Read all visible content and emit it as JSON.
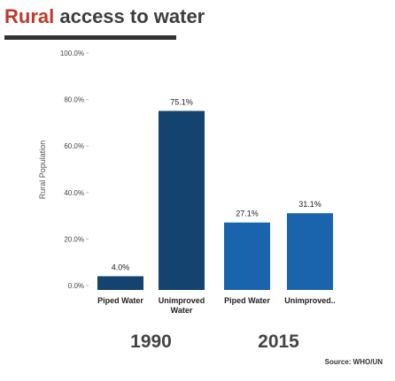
{
  "title": {
    "accent": "Rural",
    "rest": " access to water"
  },
  "source": "Source: WHO/UN",
  "colors": {
    "title_accent": "#c0392b",
    "bar_1990": "#13436e",
    "bar_2015": "#1a63ad"
  },
  "chart_data": {
    "type": "bar",
    "ylabel": "Rural Population",
    "ylim": [
      0,
      100
    ],
    "yticks": [
      "0.0%",
      "20.0%",
      "40.0%",
      "60.0%",
      "80.0%",
      "100.0%"
    ],
    "ytick_values": [
      0,
      20,
      40,
      60,
      80,
      100
    ],
    "groups": [
      {
        "year": "1990",
        "bars": [
          {
            "category": [
              "Piped Water"
            ],
            "value": 4.0,
            "label": "4.0%"
          },
          {
            "category": [
              "Unimproved",
              "Water"
            ],
            "value": 75.1,
            "label": "75.1%"
          }
        ]
      },
      {
        "year": "2015",
        "bars": [
          {
            "category": [
              "Piped Water"
            ],
            "value": 27.1,
            "label": "27.1%"
          },
          {
            "category": [
              "Unimproved.."
            ],
            "value": 31.1,
            "label": "31.1%"
          }
        ]
      }
    ],
    "grid": false,
    "legend": "none"
  }
}
